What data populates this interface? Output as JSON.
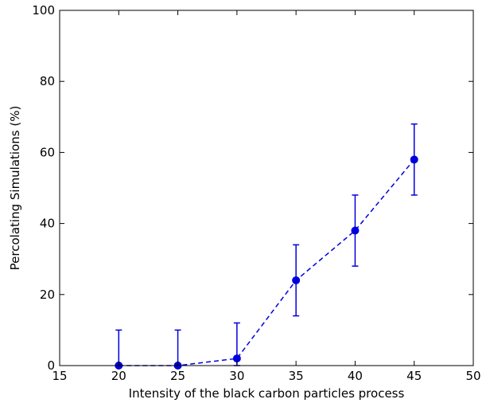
{
  "chart_data": {
    "type": "line",
    "title": "",
    "xlabel": "Intensity of the black carbon particles process",
    "ylabel": "Percolating Simulations (%)",
    "xlim": [
      15,
      50
    ],
    "ylim": [
      0,
      100
    ],
    "x_ticks": [
      15,
      20,
      25,
      30,
      35,
      40,
      45,
      50
    ],
    "y_ticks": [
      0,
      20,
      40,
      60,
      80,
      100
    ],
    "grid": false,
    "legend": "none",
    "series": [
      {
        "x": [
          20,
          25,
          30,
          35,
          40,
          45
        ],
        "y": [
          0,
          0,
          2,
          24,
          38,
          58
        ],
        "error": [
          10,
          10,
          10,
          10,
          10,
          10
        ],
        "line_style": "dashed",
        "marker": "circle",
        "color": "#0000dd"
      }
    ]
  }
}
